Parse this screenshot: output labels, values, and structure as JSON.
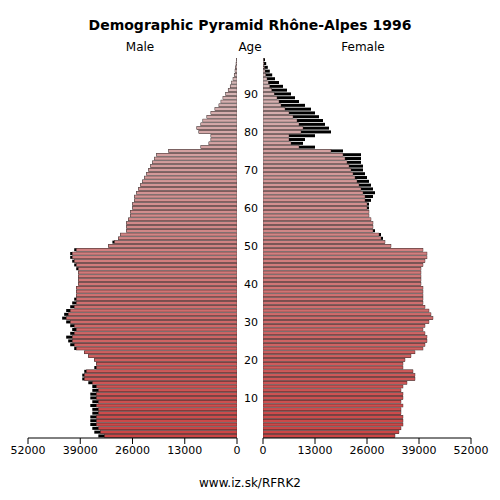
{
  "chart_data": {
    "type": "bar",
    "title": "Demographic Pyramid Rhône-Alpes 1996",
    "orientation": "horizontal",
    "ylabel": "Age",
    "annotations": [
      "www.iz.sk/RFRK2"
    ],
    "categories": [
      null,
      null,
      null,
      null,
      null,
      null,
      null,
      null,
      null,
      null,
      10,
      null,
      null,
      null,
      null,
      null,
      null,
      null,
      null,
      null,
      20,
      null,
      null,
      null,
      null,
      null,
      null,
      null,
      null,
      null,
      30,
      null,
      null,
      null,
      null,
      null,
      null,
      null,
      null,
      null,
      40,
      null,
      null,
      null,
      null,
      null,
      null,
      null,
      null,
      null,
      50,
      null,
      null,
      null,
      null,
      null,
      null,
      null,
      null,
      null,
      60,
      null,
      null,
      null,
      null,
      null,
      null,
      null,
      null,
      null,
      70,
      null,
      null,
      null,
      null,
      null,
      null,
      null,
      null,
      null,
      80,
      null,
      null,
      null,
      null,
      null,
      null,
      null,
      null,
      null,
      90,
      null,
      null,
      null,
      null,
      null,
      null,
      null,
      null,
      null
    ],
    "xlim": [
      0,
      52000
    ],
    "xticks": [
      0,
      13000,
      26000,
      39000,
      52000
    ],
    "series": [
      {
        "name": "Male",
        "color": "#cc4444",
        "values": [
          34500,
          35500,
          36000,
          36500,
          36500,
          36500,
          36000,
          36000,
          36500,
          36000,
          36500,
          36500,
          36000,
          36000,
          37000,
          38500,
          38500,
          38000,
          35500,
          35000,
          35500,
          37000,
          38000,
          40500,
          41500,
          42000,
          42500,
          41500,
          41000,
          41500,
          42500,
          43500,
          43000,
          42500,
          41500,
          41000,
          40500,
          40000,
          40000,
          40000,
          39500,
          39500,
          39500,
          39500,
          40000,
          40500,
          41000,
          41500,
          41500,
          40500,
          32000,
          31000,
          29500,
          29000,
          27500,
          27500,
          27500,
          27000,
          26500,
          26500,
          26000,
          26000,
          25500,
          25500,
          25000,
          24500,
          24000,
          23500,
          23000,
          22500,
          22000,
          21500,
          21000,
          20500,
          20000,
          17000,
          9000,
          7000,
          6500,
          6500,
          9500,
          10000,
          9000,
          8500,
          7500,
          6500,
          5500,
          4500,
          4000,
          3500,
          2800,
          2200,
          1700,
          1300,
          1000,
          700,
          500,
          350,
          250,
          150
        ]
      },
      {
        "name": "Female",
        "color": "#cc4444",
        "values": [
          33000,
          34000,
          34500,
          35000,
          35000,
          35000,
          34500,
          34500,
          35000,
          34500,
          35000,
          35000,
          34500,
          35000,
          36000,
          38000,
          38000,
          37500,
          35000,
          35000,
          35500,
          37000,
          38000,
          40000,
          40500,
          41000,
          41000,
          40500,
          40000,
          40500,
          41500,
          42500,
          42000,
          41500,
          40500,
          40000,
          40000,
          40000,
          40000,
          40000,
          39500,
          39500,
          39500,
          39500,
          39500,
          40000,
          40500,
          41000,
          41000,
          40000,
          32000,
          30500,
          30000,
          29500,
          28000,
          27500,
          27500,
          27000,
          26500,
          26500,
          26500,
          26500,
          27000,
          27500,
          28000,
          27500,
          27000,
          26500,
          26000,
          25500,
          25000,
          25000,
          24500,
          24500,
          24500,
          20000,
          13000,
          10000,
          10500,
          13000,
          17000,
          16500,
          15500,
          15000,
          14000,
          13000,
          12000,
          10500,
          9000,
          8000,
          7000,
          6000,
          5000,
          4000,
          3000,
          2300,
          1700,
          1200,
          800,
          500
        ]
      }
    ]
  }
}
